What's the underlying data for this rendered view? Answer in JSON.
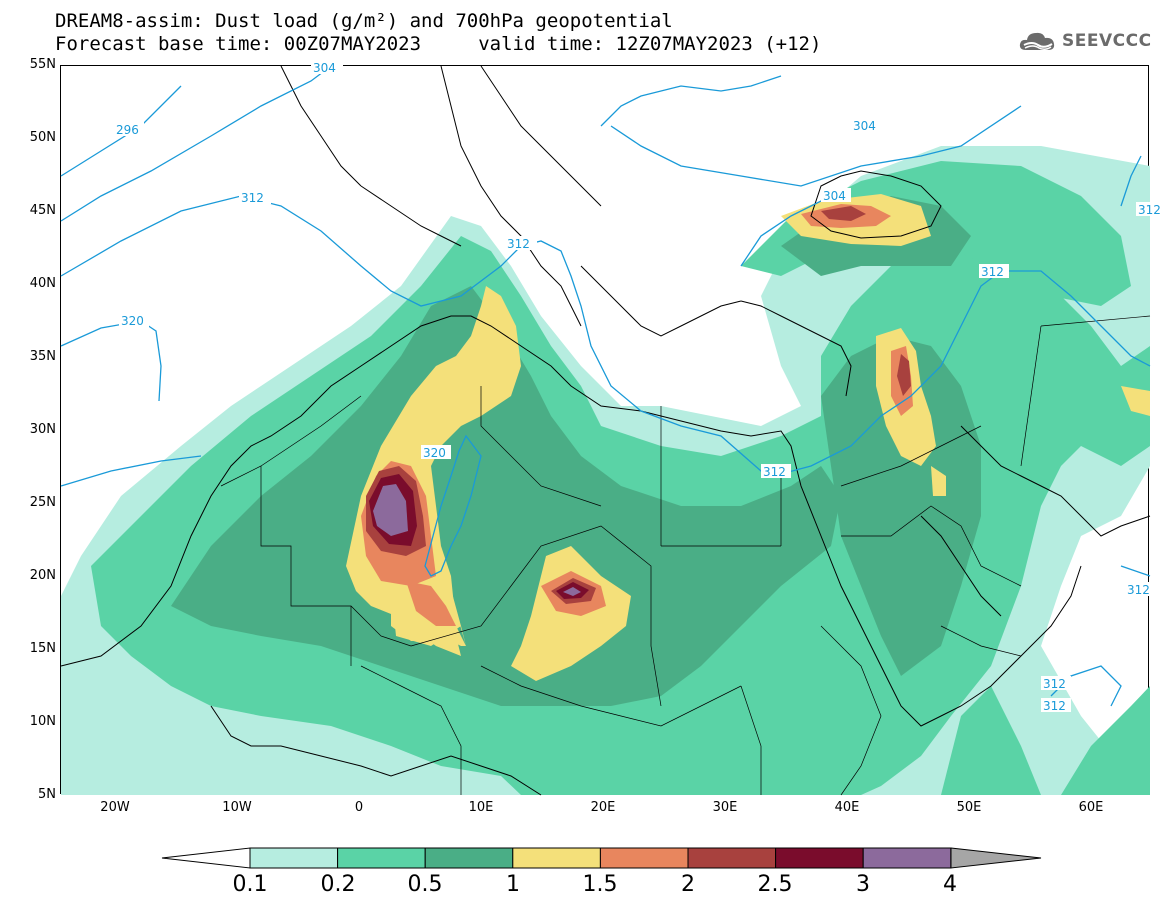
{
  "header": {
    "title_line1": "DREAM8-assim: Dust load (g/m²) and 700hPa geopotential",
    "title_line2": "Forecast base time: 00Z07MAY2023     valid time: 12Z07MAY2023 (+12)",
    "logo_text": "SEEVCCC"
  },
  "map": {
    "lat_labels": [
      "55N",
      "50N",
      "45N",
      "40N",
      "35N",
      "30N",
      "25N",
      "20N",
      "15N",
      "10N",
      "5N"
    ],
    "lon_labels": [
      "20W",
      "10W",
      "0",
      "10E",
      "20E",
      "30E",
      "40E",
      "50E",
      "60E"
    ],
    "contour_labels": [
      "304",
      "296",
      "312",
      "312",
      "320",
      "320",
      "304",
      "304",
      "312",
      "312",
      "312",
      "312",
      "312",
      "312"
    ]
  },
  "colorbar": {
    "ticks": [
      "0.1",
      "0.2",
      "0.5",
      "1",
      "1.5",
      "2",
      "2.5",
      "3",
      "4"
    ],
    "colors": [
      "#b6ede0",
      "#5ad3a6",
      "#4aae86",
      "#f4e07a",
      "#e8865e",
      "#a8413e",
      "#7a0c2c",
      "#8c6a9c"
    ],
    "over_color": "#a6a6a6",
    "under_color": "#ffffff"
  },
  "colors": {
    "contour": "#1a9ad8",
    "coast": "#000000"
  }
}
